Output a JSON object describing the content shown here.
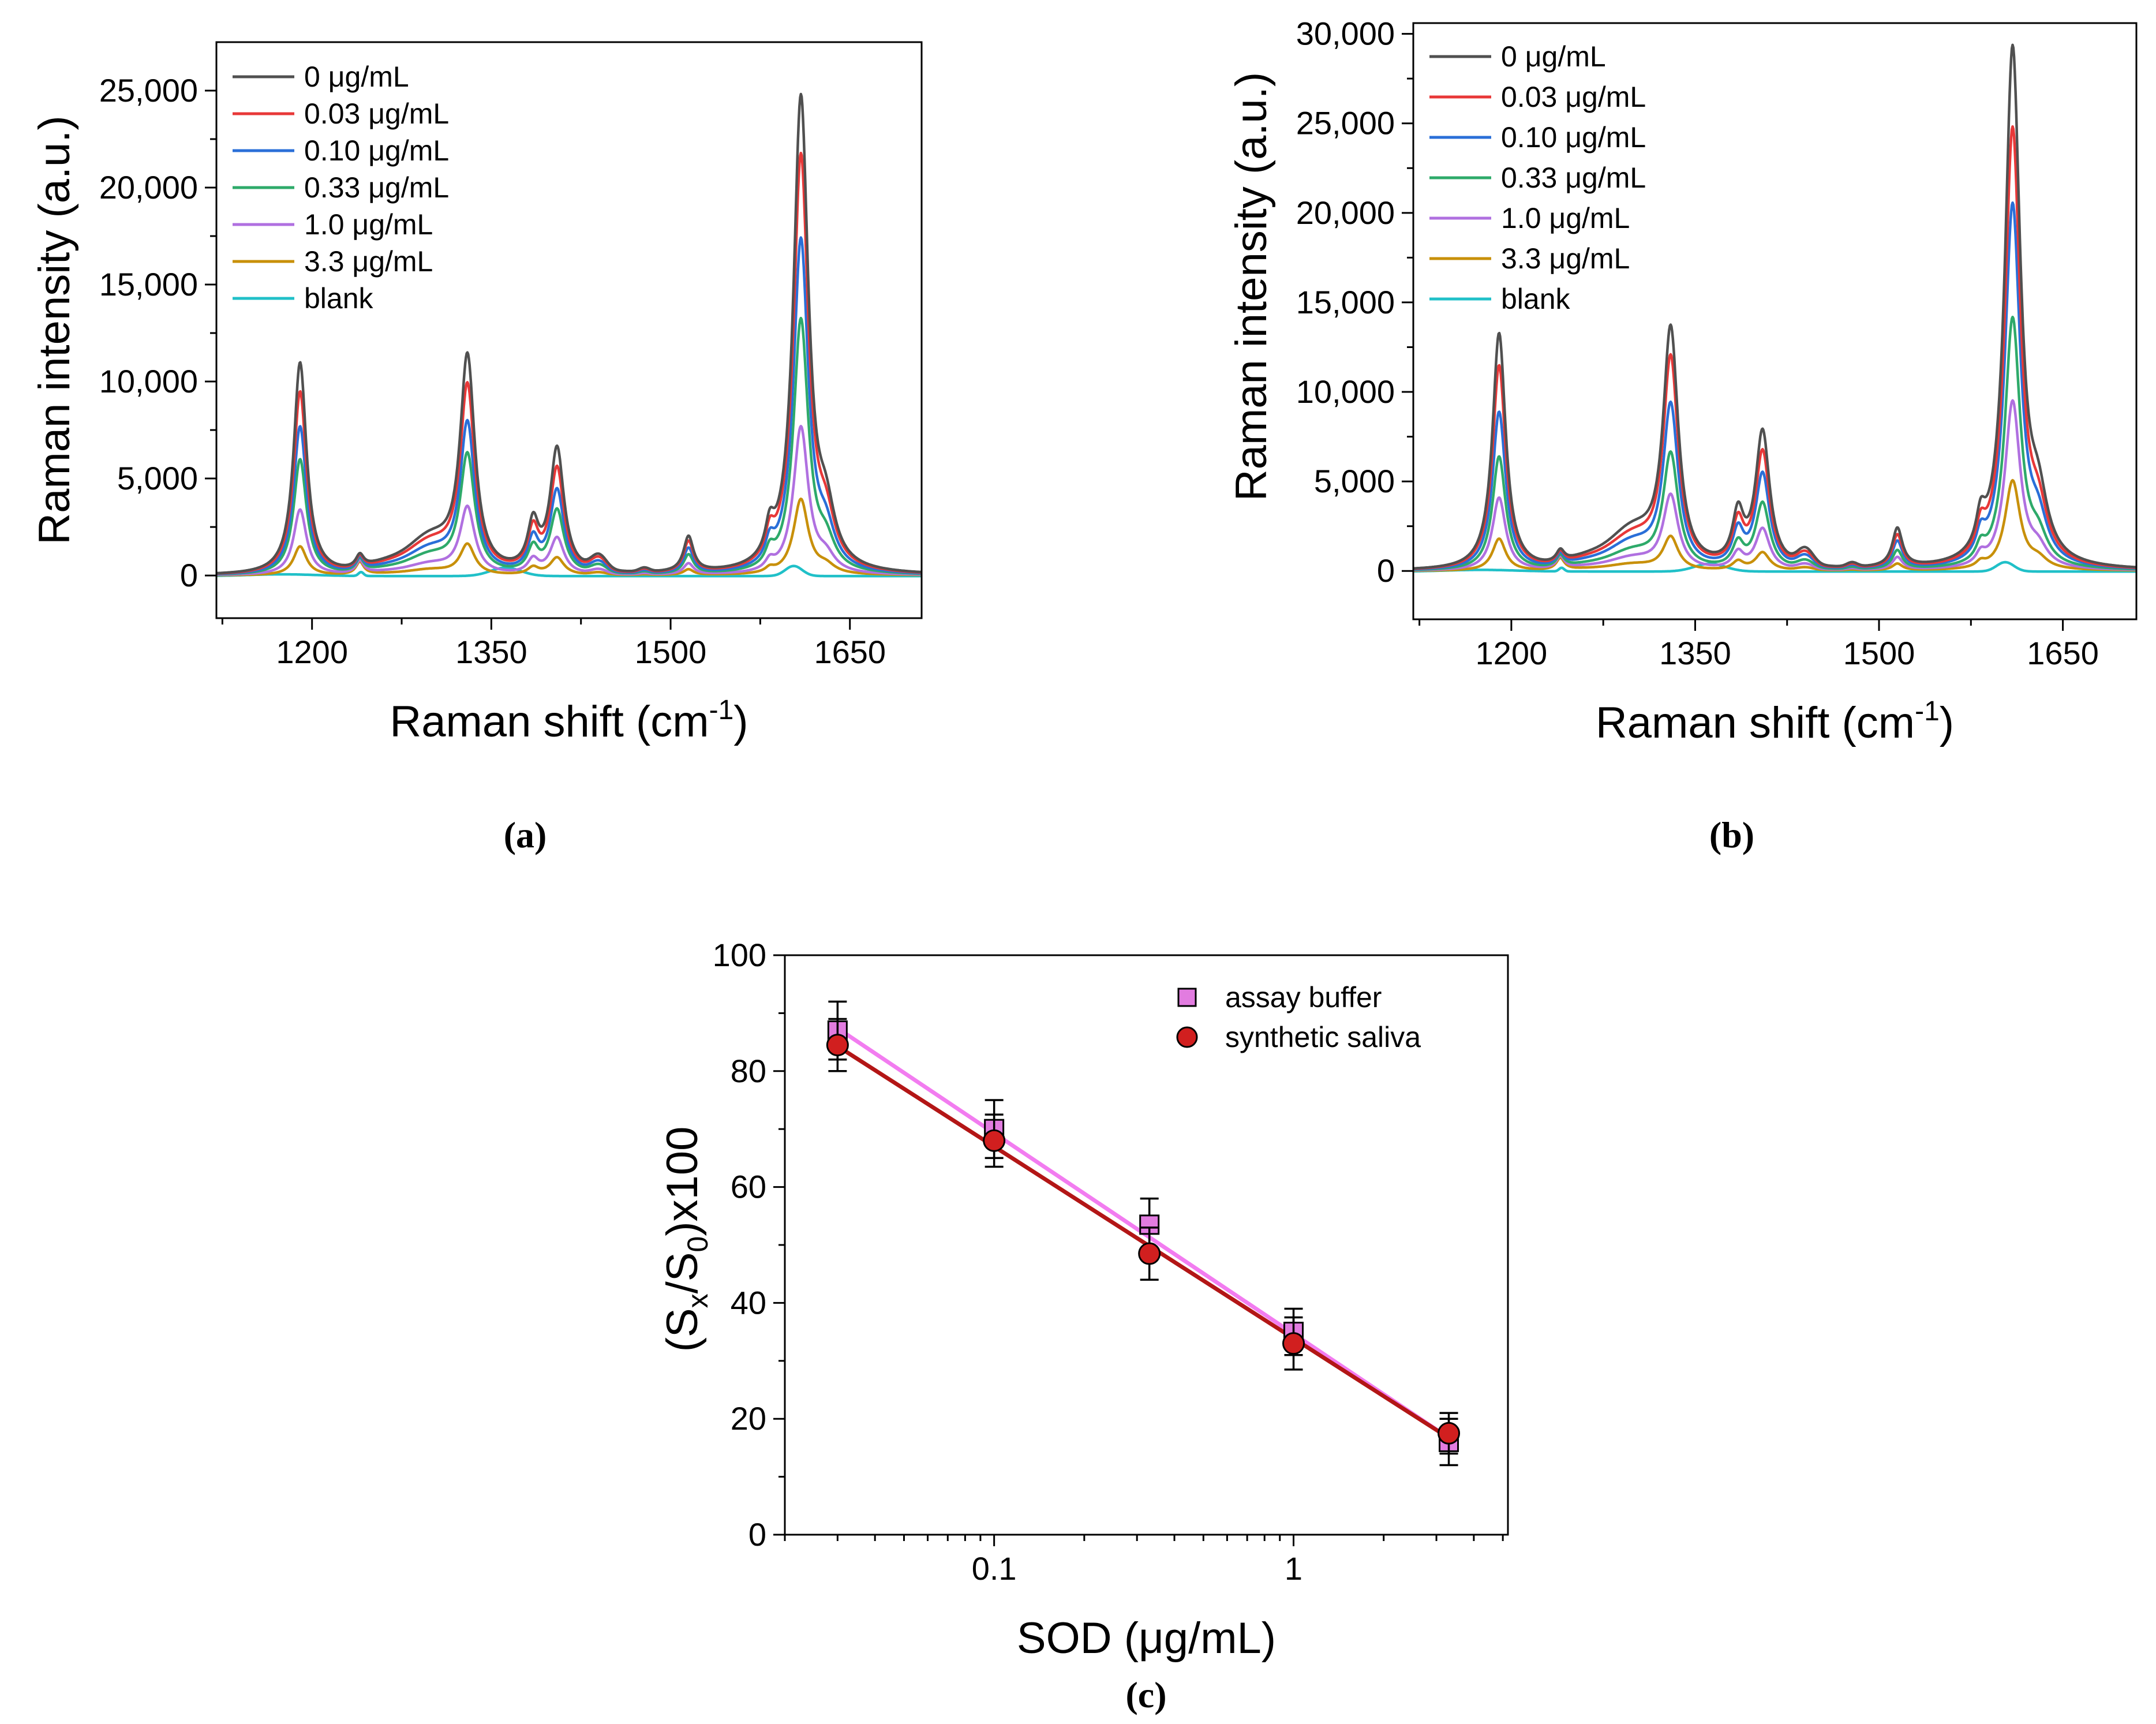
{
  "colors": {
    "c0": "#505050",
    "c003": "#e83838",
    "c010": "#2a6fd8",
    "c033": "#2eaa6a",
    "c1": "#b070e0",
    "c33": "#c8900a",
    "blank": "#20c0c8",
    "buffer_fill": "#e27ce0",
    "buffer_line": "#f27cf0",
    "saliva_fill": "#d11f1f",
    "saliva_line": "#b31616"
  },
  "chart_data": [
    {
      "type": "line",
      "panel": "(a)",
      "xlabel": "Raman shift (cm",
      "xlabel_sup": "-1",
      "xlabel_end": ")",
      "ylabel": "Raman intensity (a.u.)",
      "xlim": [
        1120,
        1710
      ],
      "ylim": [
        -2200,
        27500
      ],
      "xticks": [
        1200,
        1350,
        1500,
        1650
      ],
      "xtick_labels": [
        "1200",
        "1350",
        "1500",
        "1650"
      ],
      "yticks": [
        0,
        5000,
        10000,
        15000,
        20000,
        25000
      ],
      "ytick_labels": [
        "0",
        "5,000",
        "10,000",
        "15,000",
        "20,000",
        "25,000"
      ],
      "legend_location": "top-left",
      "series": [
        {
          "name": "0 μg/mL",
          "color_key": "c0",
          "peaks": [
            11000,
            11200,
            6400,
            24500
          ]
        },
        {
          "name": "0.03 μg/mL",
          "color_key": "c003",
          "peaks": [
            9500,
            9700,
            5400,
            21500
          ]
        },
        {
          "name": "0.10 μg/mL",
          "color_key": "c010",
          "peaks": [
            7700,
            7800,
            4300,
            17200
          ]
        },
        {
          "name": "0.33 μg/mL",
          "color_key": "c033",
          "peaks": [
            6000,
            6200,
            3300,
            13100
          ]
        },
        {
          "name": "1.0 μg/mL",
          "color_key": "c1",
          "peaks": [
            3400,
            3500,
            1900,
            7600
          ]
        },
        {
          "name": "3.3 μg/mL",
          "color_key": "c33",
          "peaks": [
            1500,
            1600,
            900,
            3900
          ]
        },
        {
          "name": "blank",
          "color_key": "blank",
          "peaks": [
            0,
            0,
            0,
            0
          ]
        }
      ],
      "peak_positions": [
        1190,
        1330,
        1405,
        1609
      ]
    },
    {
      "type": "line",
      "panel": "(b)",
      "xlabel": "Raman shift (cm",
      "xlabel_sup": "-1",
      "xlabel_end": ")",
      "ylabel": "Raman intensity (a.u.)",
      "xlim": [
        1120,
        1710
      ],
      "ylim": [
        -2700,
        30600
      ],
      "xticks": [
        1200,
        1350,
        1500,
        1650
      ],
      "xtick_labels": [
        "1200",
        "1350",
        "1500",
        "1650"
      ],
      "yticks": [
        0,
        5000,
        10000,
        15000,
        20000,
        25000,
        30000
      ],
      "ytick_labels": [
        "0",
        "5,000",
        "10,000",
        "15,000",
        "20,000",
        "25,000",
        "30,000"
      ],
      "legend_location": "top-left",
      "series": [
        {
          "name": "0 μg/mL",
          "color_key": "c0",
          "peaks": [
            13300,
            13400,
            7600,
            29000
          ]
        },
        {
          "name": "0.03 μg/mL",
          "color_key": "c003",
          "peaks": [
            11500,
            11800,
            6500,
            24500
          ]
        },
        {
          "name": "0.10 μg/mL",
          "color_key": "c010",
          "peaks": [
            8900,
            9200,
            5300,
            20300
          ]
        },
        {
          "name": "0.33 μg/mL",
          "color_key": "c033",
          "peaks": [
            6400,
            6500,
            3700,
            14000
          ]
        },
        {
          "name": "1.0 μg/mL",
          "color_key": "c1",
          "peaks": [
            4100,
            4200,
            2300,
            9400
          ]
        },
        {
          "name": "3.3 μg/mL",
          "color_key": "c33",
          "peaks": [
            1800,
            1900,
            1000,
            5000
          ]
        },
        {
          "name": "blank",
          "color_key": "blank",
          "peaks": [
            0,
            0,
            0,
            0
          ]
        }
      ],
      "peak_positions": [
        1190,
        1330,
        1405,
        1609
      ]
    },
    {
      "type": "scatter",
      "panel": "(c)",
      "xlabel": "SOD (μg/mL)",
      "ylabel_parts": [
        "(S",
        "x",
        "/S",
        "0",
        ")x100"
      ],
      "xscale": "log",
      "xlim": [
        0.02,
        5.2
      ],
      "ylim": [
        0,
        100
      ],
      "xticks": [
        0.1,
        1
      ],
      "xtick_labels": [
        "0.1",
        "1"
      ],
      "yticks": [
        0,
        20,
        40,
        60,
        80,
        100
      ],
      "ytick_labels": [
        "0",
        "20",
        "40",
        "60",
        "80",
        "100"
      ],
      "legend_location": "top-right",
      "series": [
        {
          "name": "assay buffer",
          "marker": "square",
          "color_key": "buffer_fill",
          "line_key": "buffer_line",
          "x": [
            0.03,
            0.1,
            0.33,
            1.0,
            3.3
          ],
          "y": [
            87,
            70,
            53.5,
            35,
            16
          ],
          "err": [
            5,
            5,
            4.5,
            4,
            4
          ],
          "fit": [
            [
              0.03,
              87.4
            ],
            [
              3.3,
              16.7
            ]
          ]
        },
        {
          "name": "synthetic saliva",
          "marker": "circle",
          "color_key": "saliva_fill",
          "line_key": "saliva_line",
          "x": [
            0.03,
            0.1,
            0.33,
            1.0,
            3.3
          ],
          "y": [
            84.5,
            68,
            48.5,
            33,
            17.5
          ],
          "err": [
            4.5,
            4.5,
            4.5,
            4.5,
            3.5
          ],
          "fit": [
            [
              0.03,
              84.3
            ],
            [
              3.3,
              16.7
            ]
          ]
        }
      ]
    }
  ]
}
